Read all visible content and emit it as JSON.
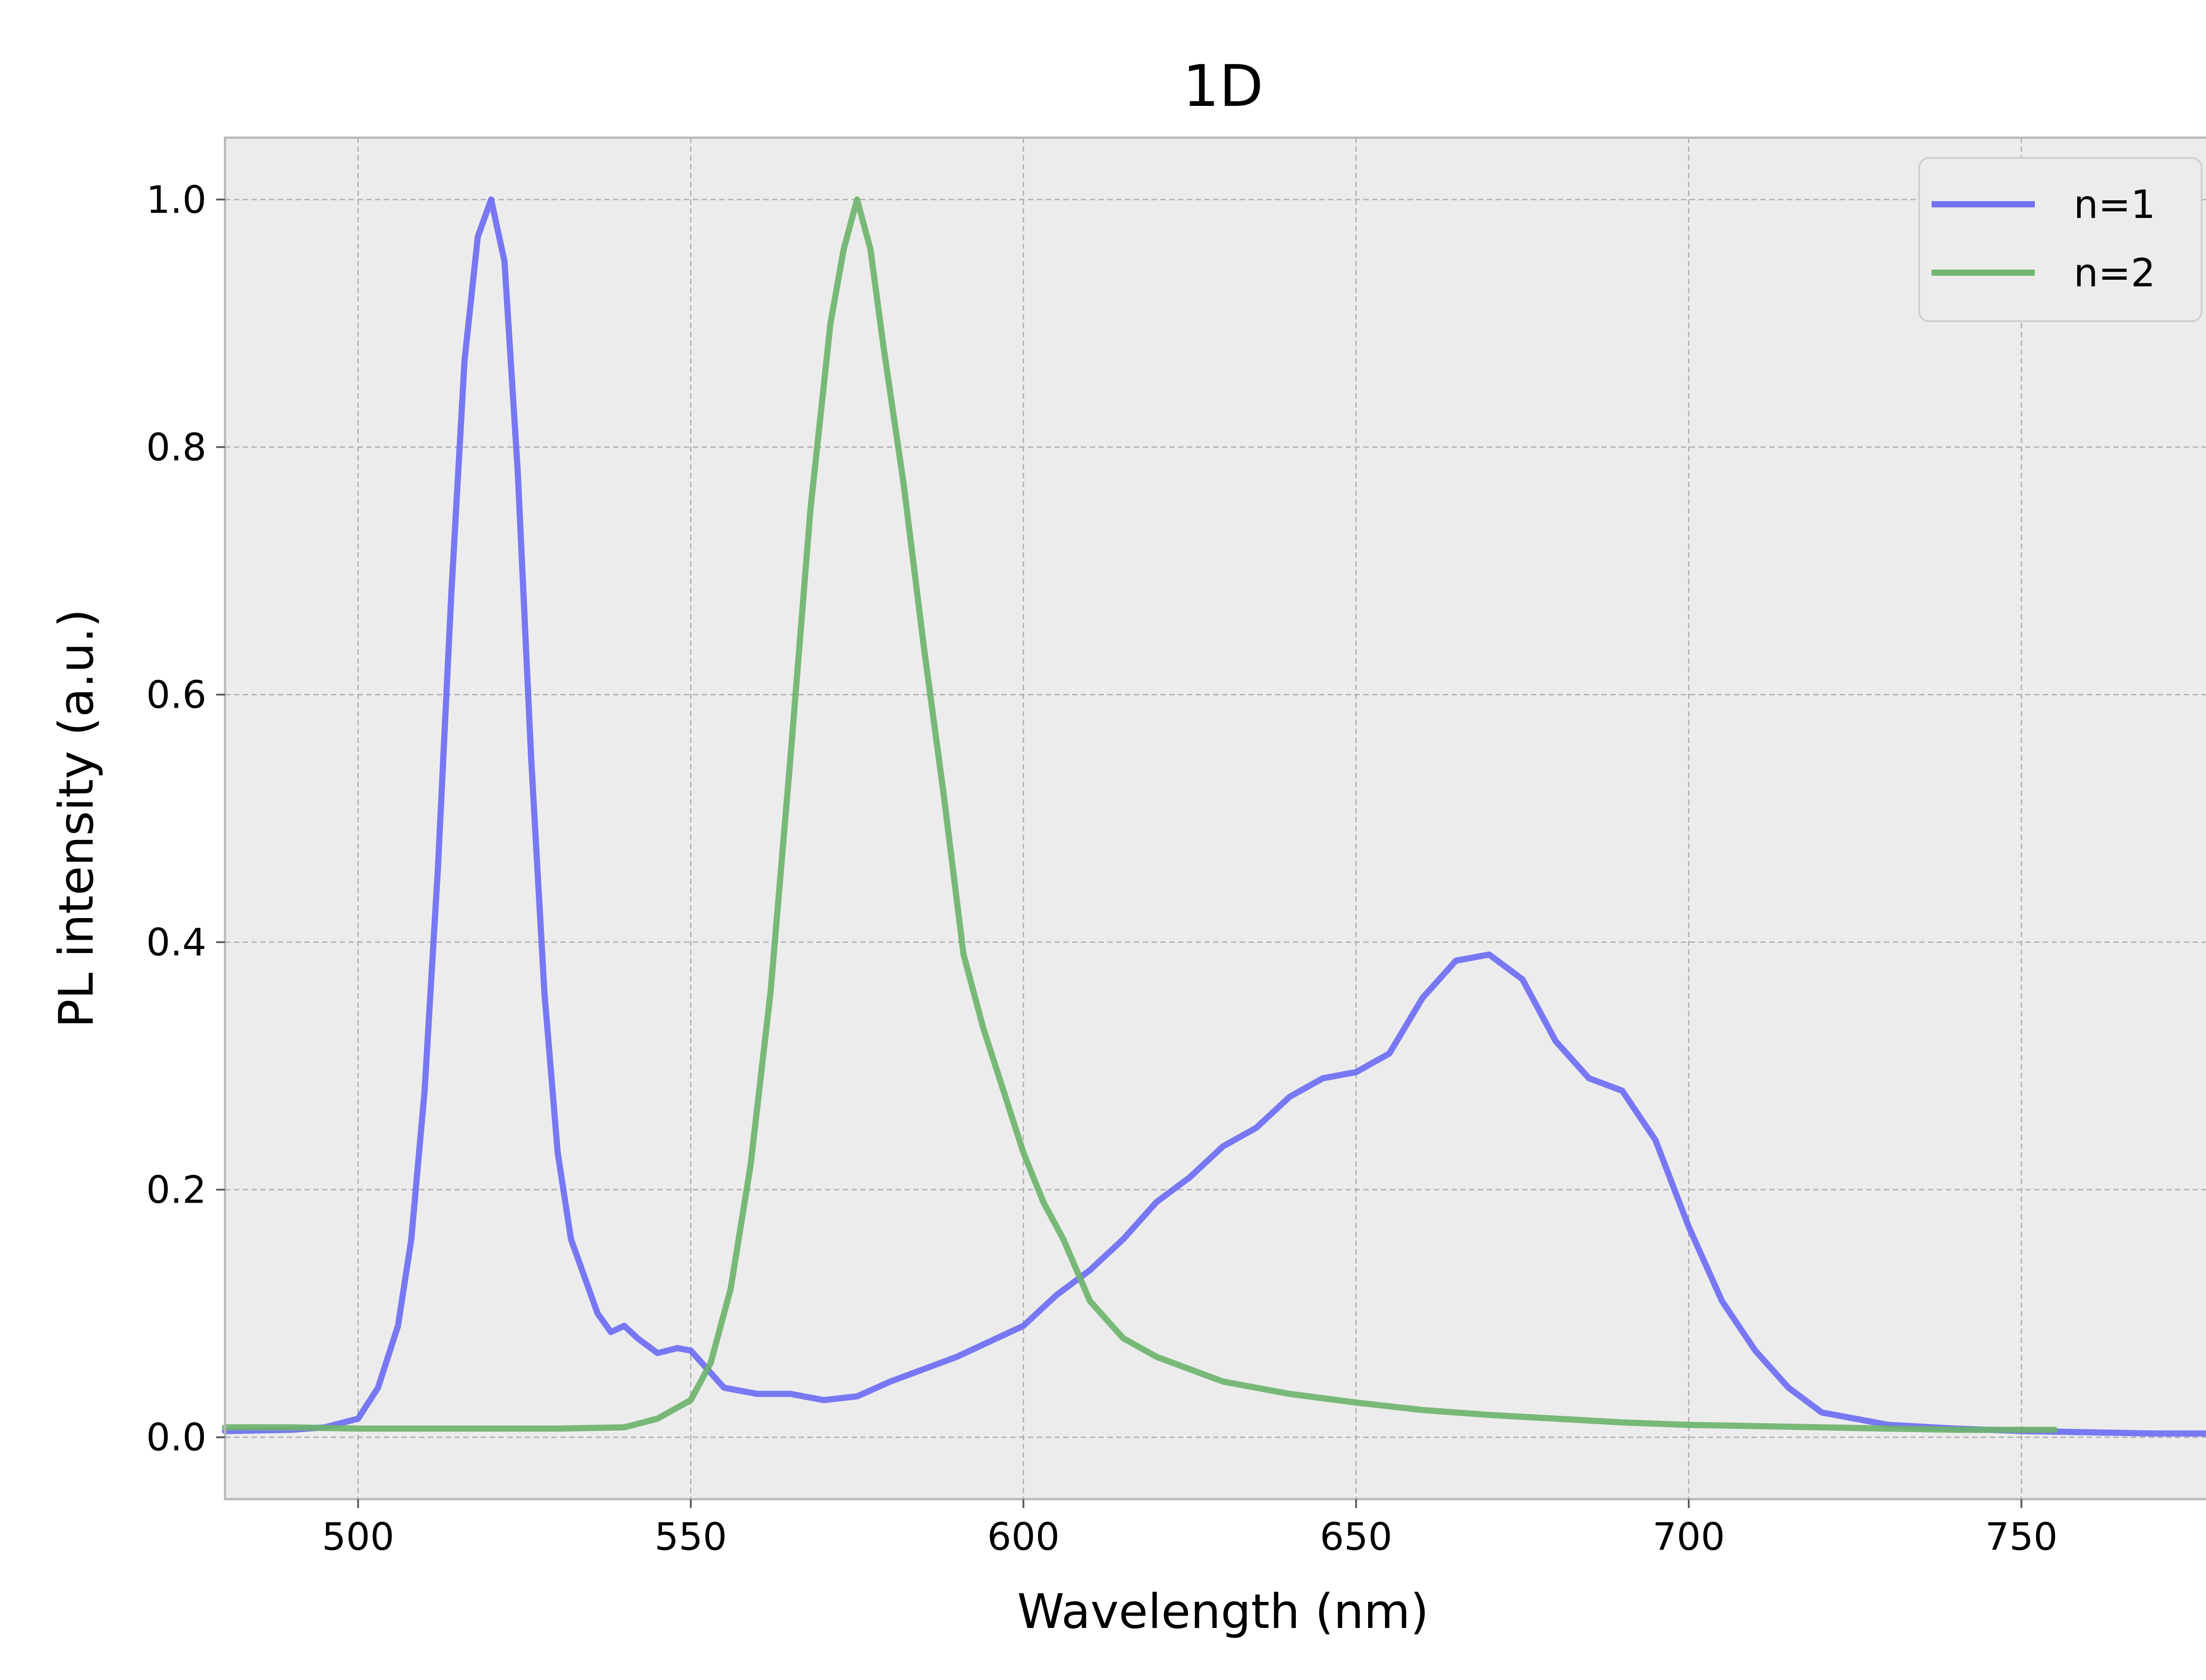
{
  "chart_data": {
    "type": "line",
    "title": "1D",
    "xlabel": "Wavelength (nm)",
    "ylabel": "PL intensity (a.u.)",
    "xlim": [
      480,
      780
    ],
    "ylim": [
      -0.05,
      1.05
    ],
    "xticks": [
      500,
      550,
      600,
      650,
      700,
      750
    ],
    "xtick_labels": [
      "500",
      "550",
      "600",
      "650",
      "700",
      "750"
    ],
    "yticks": [
      0.0,
      0.2,
      0.4,
      0.6,
      0.8,
      1.0
    ],
    "ytick_labels": [
      "0.0",
      "0.2",
      "0.4",
      "0.6",
      "0.8",
      "1.0"
    ],
    "grid": true,
    "legend_position": "top-right",
    "background_color": "#ececec",
    "series": [
      {
        "name": "n=1",
        "color": "#6b6bf5",
        "x": [
          480,
          490,
          495,
          500,
          503,
          506,
          508,
          510,
          512,
          514,
          516,
          518,
          520,
          522,
          524,
          526,
          528,
          530,
          532,
          534,
          536,
          538,
          540,
          542,
          545,
          548,
          550,
          552,
          555,
          560,
          565,
          570,
          575,
          580,
          590,
          600,
          605,
          610,
          615,
          620,
          625,
          630,
          635,
          640,
          645,
          650,
          655,
          660,
          665,
          670,
          675,
          680,
          685,
          690,
          695,
          700,
          705,
          710,
          715,
          720,
          730,
          740,
          750,
          760,
          770,
          780
        ],
        "y": [
          0.005,
          0.006,
          0.008,
          0.015,
          0.04,
          0.09,
          0.16,
          0.28,
          0.46,
          0.68,
          0.87,
          0.97,
          1.0,
          0.95,
          0.78,
          0.55,
          0.36,
          0.23,
          0.16,
          0.13,
          0.1,
          0.085,
          0.09,
          0.08,
          0.068,
          0.072,
          0.07,
          0.058,
          0.04,
          0.035,
          0.035,
          0.03,
          0.033,
          0.045,
          0.065,
          0.09,
          0.115,
          0.135,
          0.16,
          0.19,
          0.21,
          0.235,
          0.25,
          0.275,
          0.29,
          0.295,
          0.31,
          0.355,
          0.385,
          0.39,
          0.37,
          0.32,
          0.29,
          0.28,
          0.24,
          0.17,
          0.11,
          0.07,
          0.04,
          0.02,
          0.01,
          0.007,
          0.005,
          0.004,
          0.003,
          0.003
        ]
      },
      {
        "name": "n=2",
        "color": "#6bb46b",
        "x": [
          480,
          490,
          500,
          510,
          520,
          530,
          540,
          545,
          550,
          553,
          556,
          559,
          562,
          565,
          568,
          571,
          573,
          575,
          577,
          579,
          582,
          585,
          588,
          591,
          594,
          597,
          600,
          603,
          606,
          610,
          615,
          620,
          625,
          630,
          640,
          650,
          660,
          670,
          680,
          690,
          700,
          710,
          720,
          730,
          740,
          750,
          755
        ],
        "y": [
          0.008,
          0.008,
          0.007,
          0.007,
          0.007,
          0.007,
          0.008,
          0.015,
          0.03,
          0.06,
          0.12,
          0.22,
          0.36,
          0.55,
          0.75,
          0.9,
          0.96,
          1.0,
          0.96,
          0.88,
          0.77,
          0.64,
          0.52,
          0.39,
          0.33,
          0.28,
          0.23,
          0.19,
          0.16,
          0.11,
          0.08,
          0.065,
          0.055,
          0.045,
          0.035,
          0.028,
          0.022,
          0.018,
          0.015,
          0.012,
          0.01,
          0.009,
          0.008,
          0.007,
          0.006,
          0.006,
          0.006
        ]
      }
    ]
  }
}
